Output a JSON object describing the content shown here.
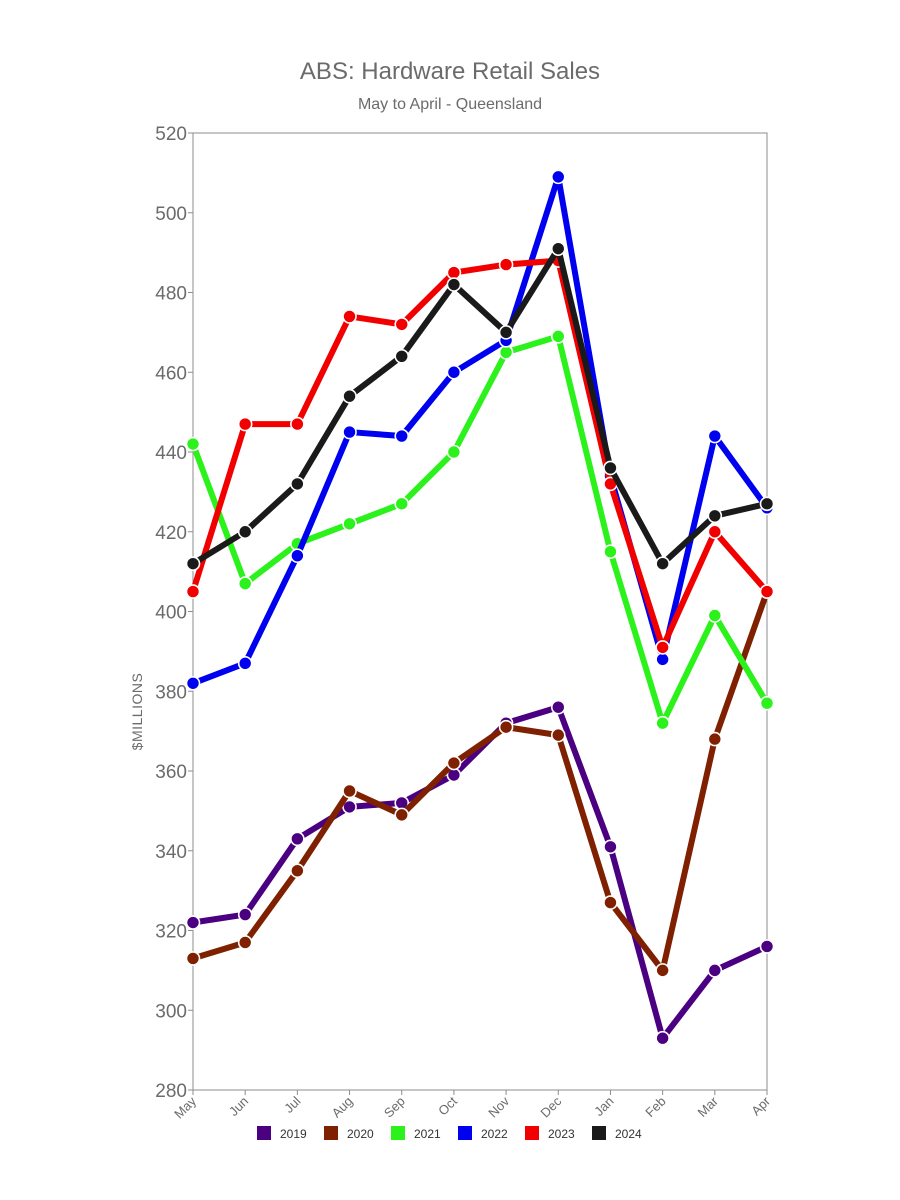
{
  "chart_data": {
    "type": "line",
    "title": "ABS: Hardware Retail Sales",
    "subtitle": "May to April - Queensland",
    "xlabel": "",
    "ylabel": "$MILLIONS",
    "x": [
      "May",
      "Jun",
      "Jul",
      "Aug",
      "Sep",
      "Oct",
      "Nov",
      "Dec",
      "Jan",
      "Feb",
      "Mar",
      "Apr"
    ],
    "ylim": [
      280,
      520
    ],
    "yticks": [
      280,
      300,
      320,
      340,
      360,
      380,
      400,
      420,
      440,
      460,
      480,
      500,
      520
    ],
    "grid": false,
    "legend_position": "bottom",
    "series": [
      {
        "name": "2019",
        "color": "#4b0082",
        "values": [
          322,
          324,
          343,
          351,
          352,
          359,
          372,
          376,
          341,
          293,
          310,
          316
        ]
      },
      {
        "name": "2020",
        "color": "#7f2100",
        "values": [
          313,
          317,
          335,
          355,
          349,
          362,
          371,
          369,
          327,
          310,
          368,
          405
        ]
      },
      {
        "name": "2021",
        "color": "#2bf21b",
        "values": [
          442,
          407,
          417,
          422,
          427,
          440,
          465,
          469,
          415,
          372,
          399,
          377
        ]
      },
      {
        "name": "2022",
        "color": "#0000f0",
        "values": [
          382,
          387,
          414,
          445,
          444,
          460,
          468,
          509,
          434,
          388,
          444,
          426
        ]
      },
      {
        "name": "2023",
        "color": "#f20000",
        "values": [
          405,
          447,
          447,
          474,
          472,
          485,
          487,
          488,
          432,
          391,
          420,
          405
        ]
      },
      {
        "name": "2024",
        "color": "#1a1a1a",
        "values": [
          412,
          420,
          432,
          454,
          464,
          482,
          470,
          491,
          436,
          412,
          424,
          427
        ]
      }
    ]
  }
}
